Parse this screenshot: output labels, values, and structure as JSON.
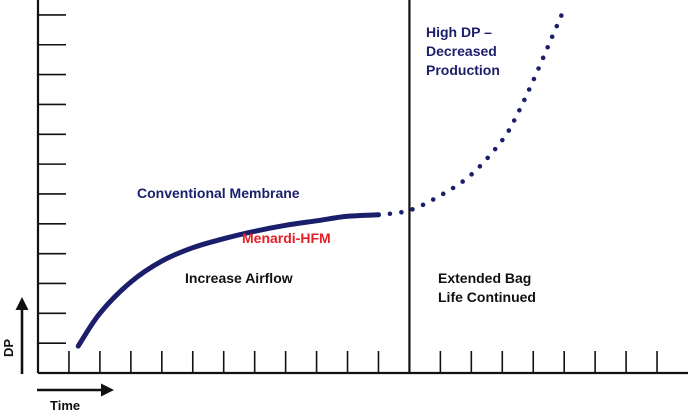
{
  "chart_data": {
    "type": "line",
    "title": "",
    "xlabel": "Time",
    "ylabel": "DP",
    "grid": false,
    "legend": "none",
    "xlim": [
      0,
      21
    ],
    "ylim": [
      0,
      12.5
    ],
    "series": [
      {
        "name": "Conventional Membrane",
        "style": "solid",
        "color": "#1b1f6b",
        "x": [
          1.3,
          2.0,
          3.0,
          4.0,
          5.0,
          6.0,
          7.0,
          8.0,
          9.0,
          10.0,
          11.0
        ],
        "y": [
          0.9,
          2.0,
          3.05,
          3.75,
          4.2,
          4.5,
          4.75,
          4.95,
          5.1,
          5.25,
          5.3
        ]
      },
      {
        "name": "Menardi-HFM",
        "style": "dotted",
        "color": "#1b1f6b",
        "x": [
          11.0,
          12.0,
          13.0,
          14.0,
          15.0,
          15.5,
          16.0,
          16.5,
          17.0
        ],
        "y": [
          5.3,
          5.45,
          5.95,
          6.65,
          7.8,
          8.7,
          9.8,
          11.0,
          12.2
        ]
      }
    ],
    "divider_x": 12.0,
    "annotations": [
      {
        "id": "conventional",
        "text": "Conventional Membrane",
        "color": "#1b1f6b"
      },
      {
        "id": "menardi",
        "text": "Menardi-HFM",
        "color": "#e41e26"
      },
      {
        "id": "increase",
        "text": "Increase Airflow",
        "color": "#111111"
      },
      {
        "id": "highdp",
        "lines": [
          "High DP –",
          "Decreased",
          "Production"
        ],
        "color": "#1b1f6b"
      },
      {
        "id": "extended",
        "lines": [
          "Extended Bag",
          "Life Continued"
        ],
        "color": "#111111"
      }
    ]
  }
}
